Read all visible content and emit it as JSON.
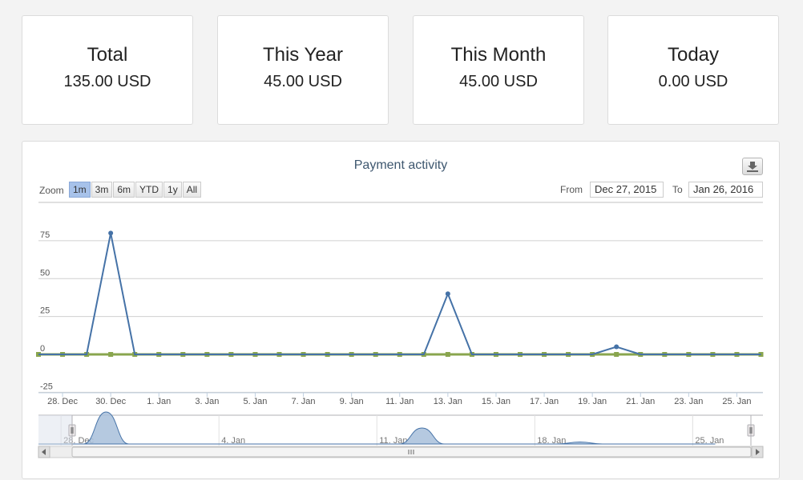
{
  "summary_cards": [
    {
      "title": "Total",
      "value": "135.00 USD"
    },
    {
      "title": "This Year",
      "value": "45.00 USD"
    },
    {
      "title": "This Month",
      "value": "45.00 USD"
    },
    {
      "title": "Today",
      "value": "0.00 USD"
    }
  ],
  "range_selector": {
    "zoom_label": "Zoom",
    "buttons": [
      "1m",
      "3m",
      "6m",
      "YTD",
      "1y",
      "All"
    ],
    "active": "1m",
    "from_label": "From",
    "from_value": "Dec 27, 2015",
    "to_label": "To",
    "to_value": "Jan 26, 2016"
  },
  "icons": {
    "export": "download-icon",
    "scrollbar_left": "left-arrow-icon",
    "scrollbar_right": "right-arrow-icon",
    "scrollbar_grip": "grip-icon"
  },
  "colors": {
    "series_payments": "#4572a7",
    "series_zero": "#89a54e",
    "navigator_fill": "#a8bfdb"
  },
  "chart_data": {
    "type": "line",
    "title": "Payment activity",
    "xlabel": "",
    "ylabel": "",
    "ylim": [
      -25,
      100
    ],
    "yticks": [
      -25,
      0,
      25,
      50,
      75
    ],
    "x_tick_labels": [
      "28. Dec",
      "30. Dec",
      "1. Jan",
      "3. Jan",
      "5. Jan",
      "7. Jan",
      "9. Jan",
      "11. Jan",
      "13. Jan",
      "15. Jan",
      "17. Jan",
      "19. Jan",
      "21. Jan",
      "23. Jan",
      "25. Jan"
    ],
    "x_tick_days": [
      1,
      3,
      5,
      7,
      9,
      11,
      13,
      15,
      17,
      19,
      21,
      23,
      25,
      27,
      29
    ],
    "navigator_labels": [
      "28. Dec",
      "4. Jan",
      "11. Jan",
      "18. Jan",
      "25. Jan"
    ],
    "navigator_days": [
      1,
      8,
      15,
      22,
      29
    ],
    "grid": true,
    "x_days": [
      0,
      1,
      2,
      3,
      4,
      5,
      6,
      7,
      8,
      9,
      10,
      11,
      12,
      13,
      14,
      15,
      16,
      17,
      18,
      19,
      20,
      21,
      22,
      23,
      24,
      25,
      26,
      27,
      28,
      29,
      30
    ],
    "series": [
      {
        "values": [
          0,
          0,
          0,
          80,
          0,
          0,
          0,
          0,
          0,
          0,
          0,
          0,
          0,
          0,
          0,
          0,
          0,
          40,
          0,
          0,
          0,
          0,
          0,
          0,
          5,
          0,
          0,
          0,
          0,
          0,
          0
        ]
      },
      {
        "values": [
          0,
          0,
          0,
          0,
          0,
          0,
          0,
          0,
          0,
          0,
          0,
          0,
          0,
          0,
          0,
          0,
          0,
          0,
          0,
          0,
          0,
          0,
          0,
          0,
          0,
          0,
          0,
          0,
          0,
          0,
          0
        ]
      }
    ]
  }
}
